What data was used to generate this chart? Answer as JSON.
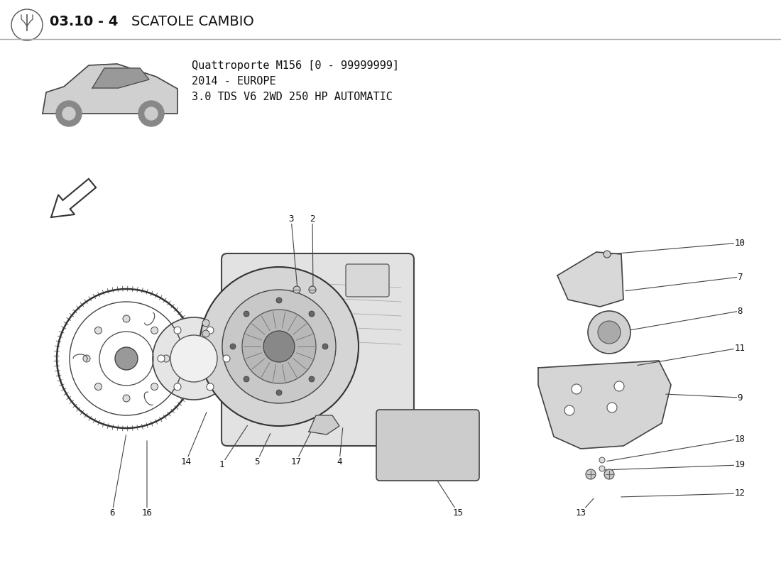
{
  "title_bold": "03.10 - 4",
  "title_text": "SCATOLE CAMBIO",
  "subtitle_line1": "Quattroporte M156 [0 - 99999999]",
  "subtitle_line2": "2014 - EUROPE",
  "subtitle_line3": "3.0 TDS V6 2WD 250 HP AUTOMATIC",
  "bg_color": "#ffffff"
}
